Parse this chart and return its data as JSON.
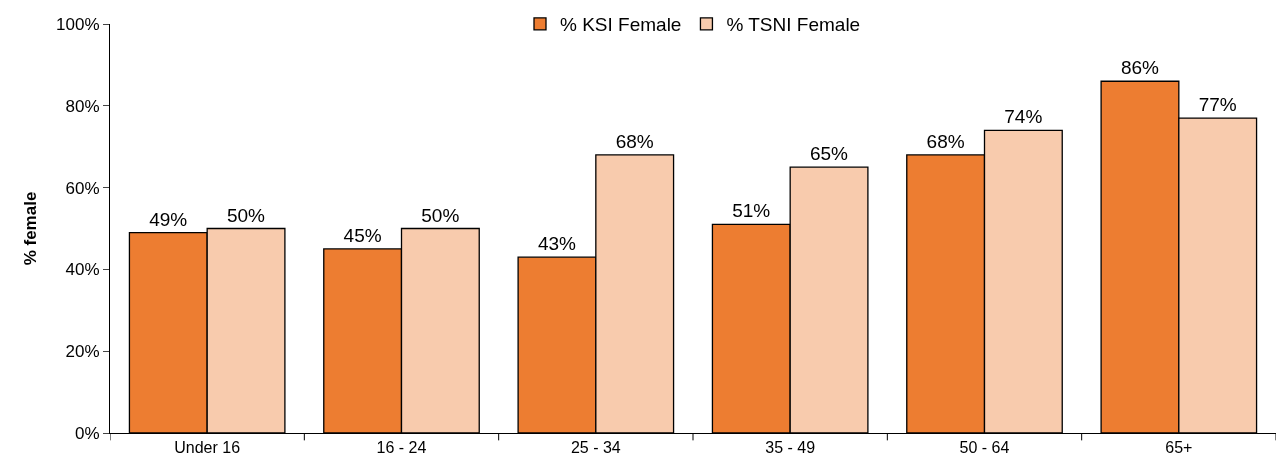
{
  "chart_data": {
    "type": "bar",
    "ylabel": "% female",
    "categories": [
      "Under 16",
      "16 - 24",
      "25 - 34",
      "35 - 49",
      "50 - 64",
      "65+"
    ],
    "series": [
      {
        "name": "% KSI Female",
        "color": "#ed7d31",
        "values": [
          49,
          45,
          43,
          51,
          68,
          86
        ],
        "value_labels": [
          "49%",
          "45%",
          "43%",
          "51%",
          "68%",
          "86%"
        ]
      },
      {
        "name": "% TSNI Female",
        "color": "#f8cbad",
        "values": [
          50,
          50,
          68,
          65,
          74,
          77
        ],
        "value_labels": [
          "50%",
          "50%",
          "68%",
          "65%",
          "74%",
          "77%"
        ]
      }
    ],
    "ylim": [
      0,
      100
    ],
    "yticks": [
      {
        "value": 0,
        "label": "0%"
      },
      {
        "value": 20,
        "label": "20%"
      },
      {
        "value": 40,
        "label": "40%"
      },
      {
        "value": 60,
        "label": "60%"
      },
      {
        "value": 80,
        "label": "80%"
      },
      {
        "value": 100,
        "label": "100%"
      }
    ],
    "legend": "top"
  }
}
